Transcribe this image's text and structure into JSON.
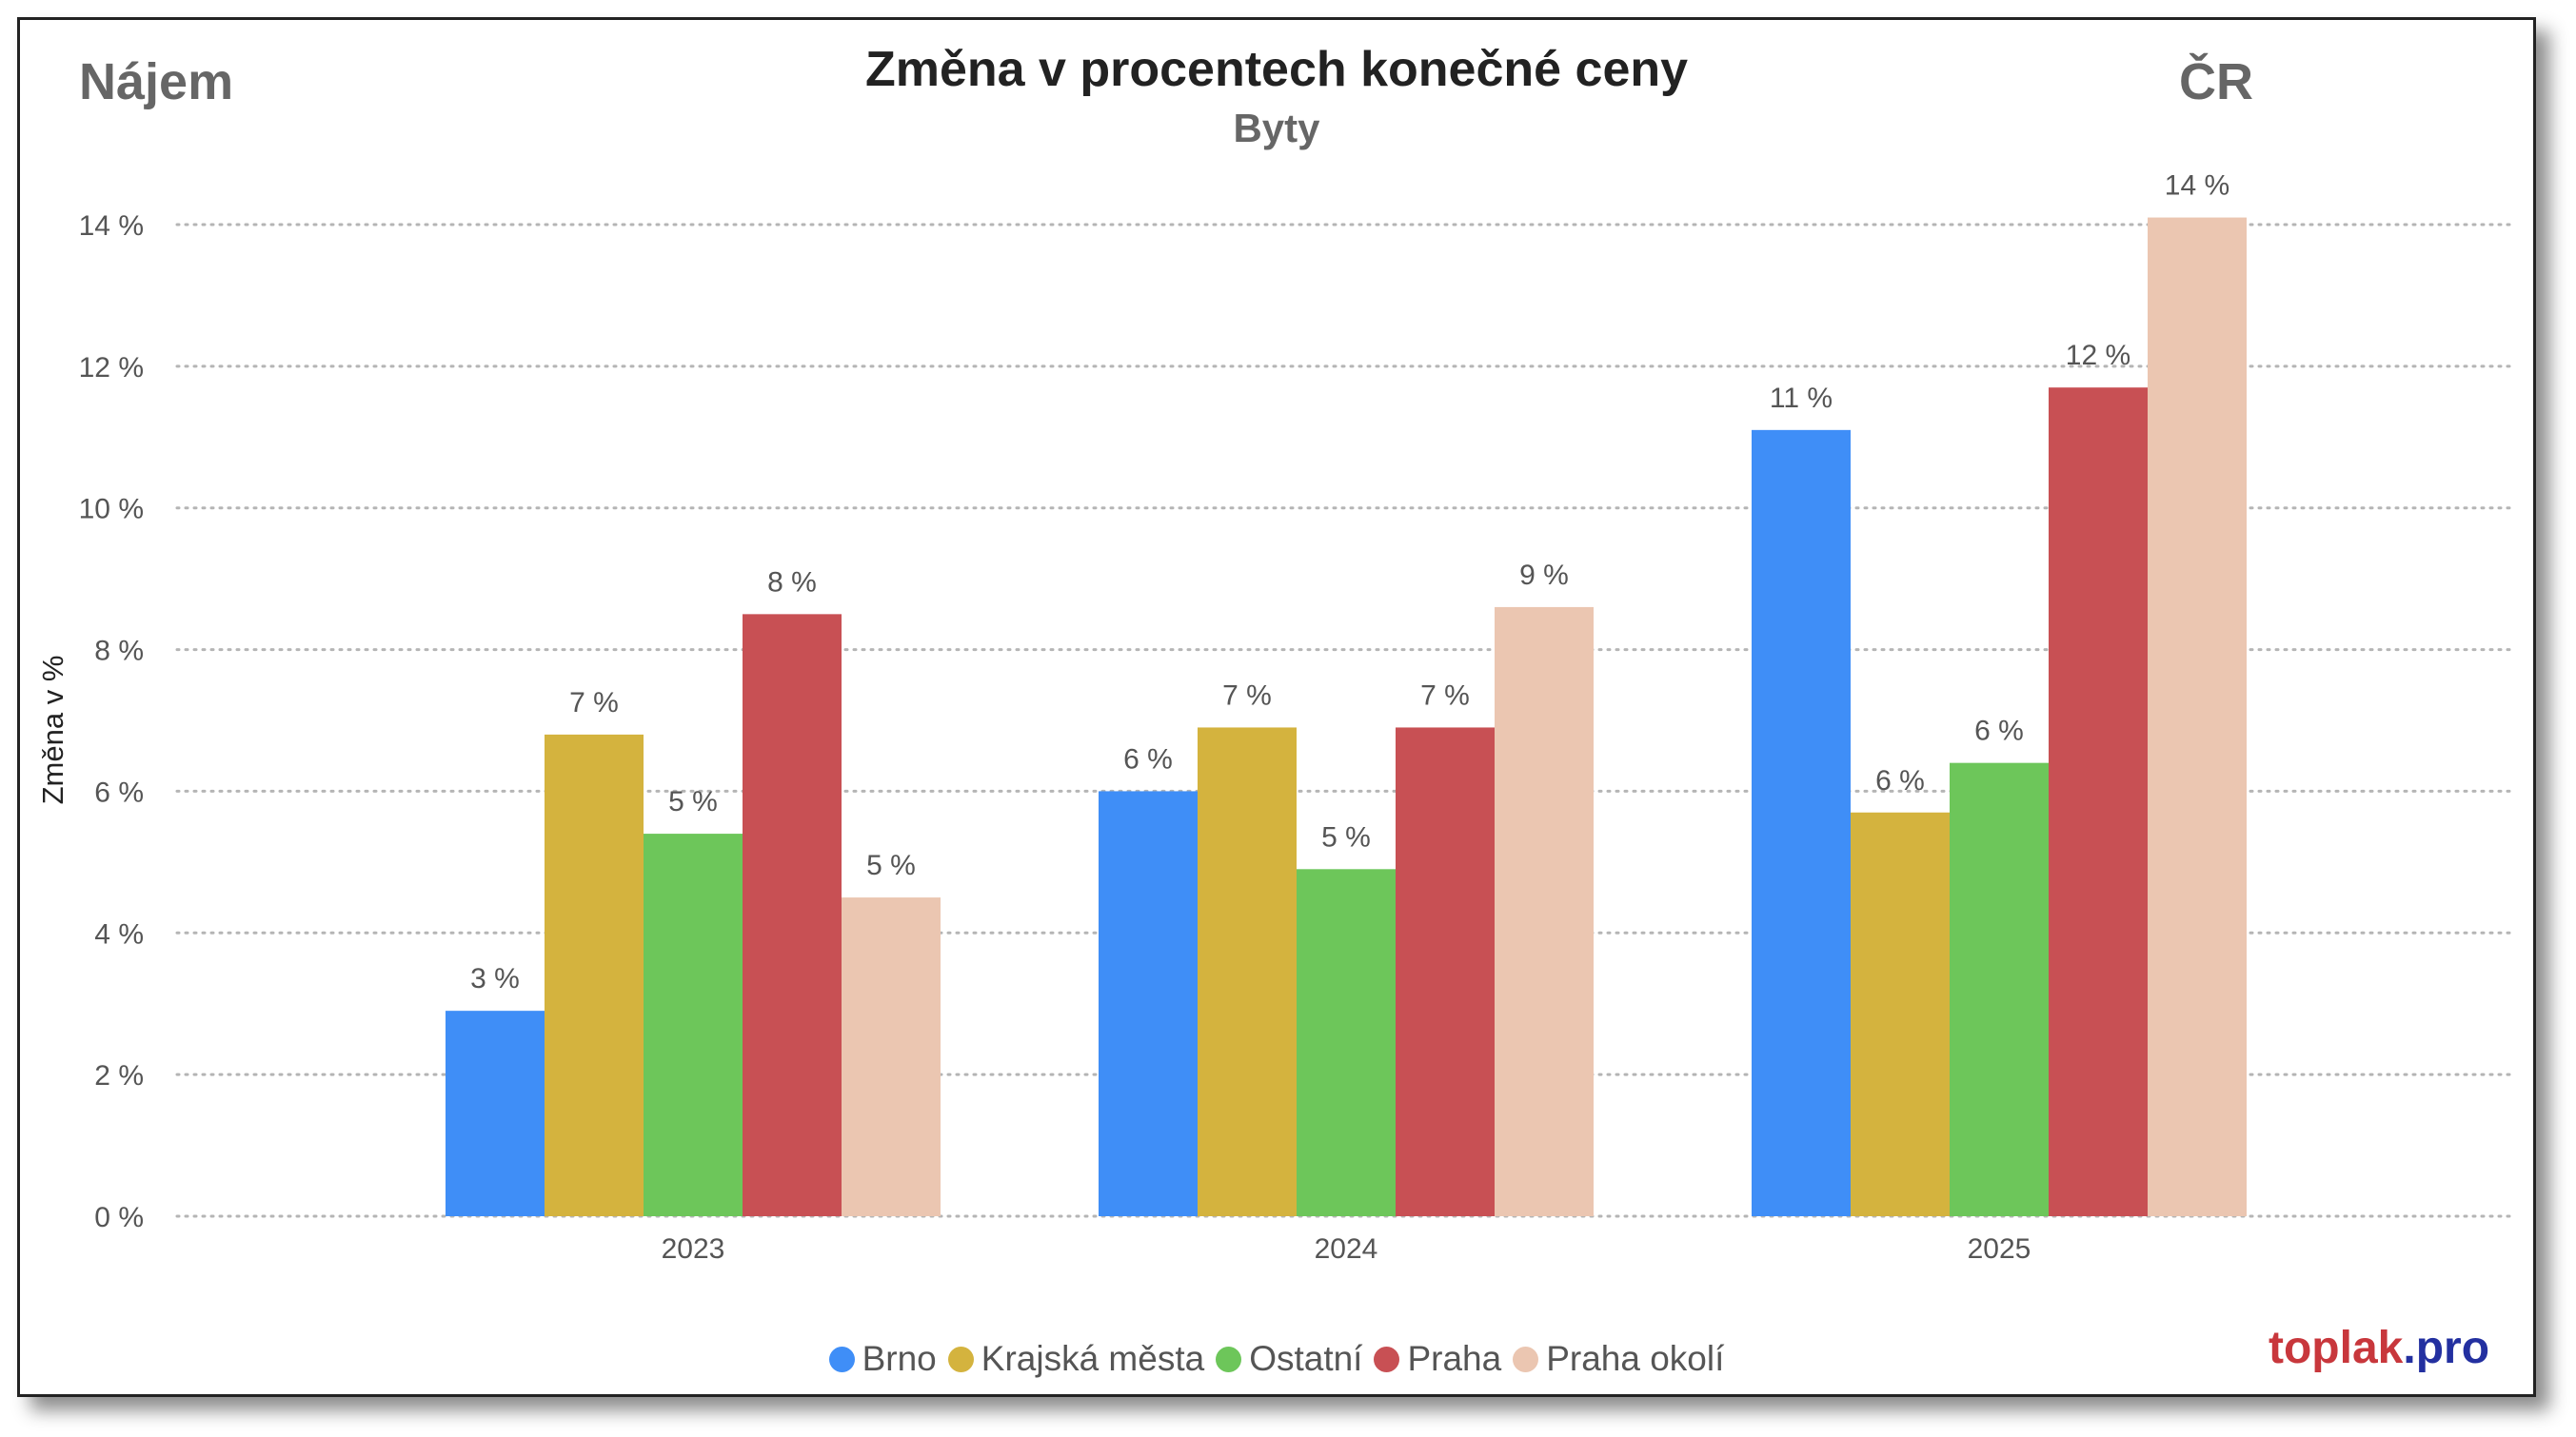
{
  "header": {
    "left_label": "Nájem",
    "right_label": "ČR"
  },
  "brand": {
    "main": "toplak",
    "tld": ".pro"
  },
  "chart_data": {
    "type": "bar",
    "title": "Změna v procentech konečné ceny",
    "subtitle": "Byty",
    "xlabel": "",
    "ylabel": "Změna v %",
    "categories": [
      "2023",
      "2024",
      "2025"
    ],
    "ylim": [
      0,
      14
    ],
    "yticks": [
      0,
      2,
      4,
      6,
      8,
      10,
      12,
      14
    ],
    "ytick_labels": [
      "0 %",
      "2 %",
      "4 %",
      "6 %",
      "8 %",
      "10 %",
      "12 %",
      "14 %"
    ],
    "grid": true,
    "legend_position": "bottom-center",
    "series": [
      {
        "name": "Brno",
        "color": "#3f8ef7",
        "values": [
          2.9,
          6.0,
          11.1
        ],
        "labels": [
          "3 %",
          "6 %",
          "11 %"
        ]
      },
      {
        "name": "Krajská města",
        "color": "#d4b33e",
        "values": [
          6.8,
          6.9,
          5.7
        ],
        "labels": [
          "7 %",
          "7 %",
          "6 %"
        ]
      },
      {
        "name": "Ostatní",
        "color": "#6dc65a",
        "values": [
          5.4,
          4.9,
          6.4
        ],
        "labels": [
          "5 %",
          "5 %",
          "6 %"
        ]
      },
      {
        "name": "Praha",
        "color": "#c85054",
        "values": [
          8.5,
          6.9,
          11.7
        ],
        "labels": [
          "8 %",
          "7 %",
          "12 %"
        ]
      },
      {
        "name": "Praha okolí",
        "color": "#ebc6b1",
        "values": [
          4.5,
          8.6,
          14.1
        ],
        "labels": [
          "5 %",
          "9 %",
          "14 %"
        ]
      }
    ]
  }
}
